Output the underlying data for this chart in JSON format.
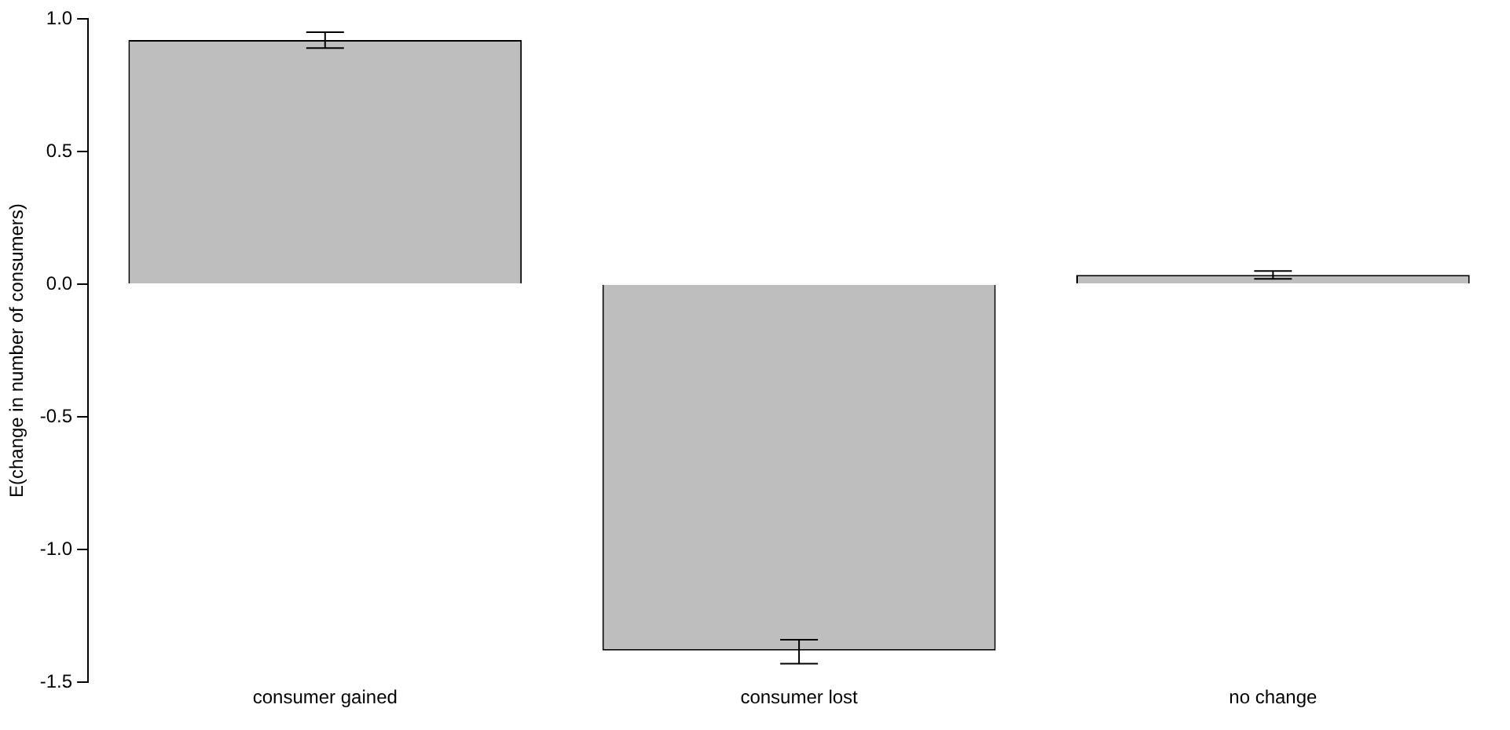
{
  "chart_data": {
    "type": "bar",
    "ylabel": "E(change in number of consumers)",
    "categories": [
      "consumer gained",
      "consumer lost",
      "no change"
    ],
    "values": [
      0.92,
      -1.38,
      0.035
    ],
    "errors": [
      [
        0.89,
        0.95
      ],
      [
        -1.43,
        -1.34
      ],
      [
        0.02,
        0.05
      ]
    ],
    "color": "#bebebe",
    "ylim": [
      -1.5,
      1.0
    ],
    "yticks": [
      -1.5,
      {
        "value": -1,
        "label": "-1.0"
      },
      -0.5,
      {
        "value": 0,
        "label": "0.0"
      },
      0.5,
      {
        "value": 1,
        "label": "1.0"
      }
    ],
    "grid": false,
    "legend": false
  }
}
